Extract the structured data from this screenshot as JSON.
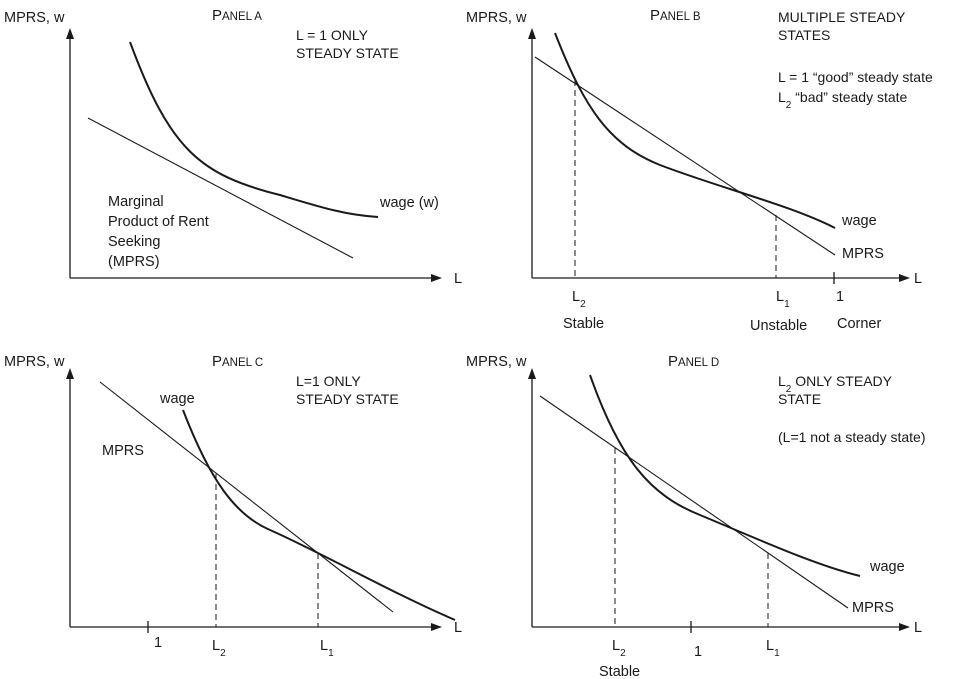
{
  "axis": {
    "y_label": "MPRS, w",
    "x_label": "L"
  },
  "panels": {
    "a": {
      "title_first": "P",
      "title_rest": "ANEL A",
      "note_line1": "L = 1 ONLY",
      "note_line2": "STEADY STATE",
      "wage_label": "wage (w)",
      "mprs_label_line1": "Marginal",
      "mprs_label_line2": "Product of Rent",
      "mprs_label_line3": "Seeking",
      "mprs_label_line4": "(MPRS)"
    },
    "b": {
      "title_first": "P",
      "title_rest": "ANEL B",
      "note_line1": "MULTIPLE STEADY",
      "note_line2": "STATES",
      "good_text": "L = 1 “good” steady state",
      "bad_prefix": "L",
      "bad_sub": "2",
      "bad_text": " “bad” steady state",
      "wage_label": "wage",
      "mprs_label": "MPRS",
      "tick_l2": "L",
      "tick_l2_sub": "2",
      "tick_l1": "L",
      "tick_l1_sub": "1",
      "tick_one": "1",
      "stable": "Stable",
      "unstable": "Unstable",
      "corner": "Corner"
    },
    "c": {
      "title_first": "P",
      "title_rest": "ANEL C",
      "note_line1": "L=1 ONLY",
      "note_line2": "STEADY STATE",
      "wage_label": "wage",
      "mprs_label": "MPRS",
      "tick_one": "1",
      "tick_l2": "L",
      "tick_l2_sub": "2",
      "tick_l1": "L",
      "tick_l1_sub": "1"
    },
    "d": {
      "title_first": "P",
      "title_rest": "ANEL D",
      "note_prefix": "L",
      "note_sub": "2",
      "note_line1_rest": " ONLY STEADY",
      "note_line2": "STATE",
      "note_line3": "(L=1 not a steady state)",
      "wage_label": "wage",
      "mprs_label": "MPRS",
      "tick_l2": "L",
      "tick_l2_sub": "2",
      "tick_one": "1",
      "tick_l1": "L",
      "tick_l1_sub": "1",
      "stable": "Stable"
    }
  }
}
